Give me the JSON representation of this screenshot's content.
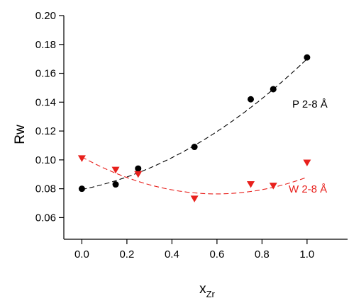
{
  "chart_data": {
    "type": "scatter",
    "xlabel": "x",
    "xlabel_subscript": "Zr",
    "ylabel": "Rw",
    "xlim": [
      -0.08,
      1.18
    ],
    "ylim": [
      0.045,
      0.2
    ],
    "xticks": [
      "0.0",
      "0.2",
      "0.4",
      "0.6",
      "0.8",
      "1.0"
    ],
    "yticks": [
      "0.06",
      "0.08",
      "0.10",
      "0.12",
      "0.14",
      "0.16",
      "0.18",
      "0.20"
    ],
    "grid": false,
    "series": [
      {
        "name": "P 2-8 Å",
        "marker": "circle",
        "color": "#000000",
        "x": [
          0.0,
          0.15,
          0.25,
          0.5,
          0.75,
          0.85,
          1.0
        ],
        "y": [
          0.08,
          0.083,
          0.094,
          0.109,
          0.142,
          0.149,
          0.171
        ],
        "fit": {
          "type": "quadratic",
          "coefficients": [
            0.0795,
            0.0315,
            0.059
          ],
          "style": "dashed"
        }
      },
      {
        "name": "W 2-8 Å",
        "marker": "triangle-down",
        "color": "#e8201c",
        "x": [
          0.0,
          0.15,
          0.25,
          0.5,
          0.75,
          0.85,
          1.0
        ],
        "y": [
          0.101,
          0.093,
          0.09,
          0.073,
          0.083,
          0.082,
          0.098
        ],
        "fit": {
          "type": "quadratic",
          "coefficients": [
            0.102,
            -0.0855,
            0.0715
          ],
          "style": "dashed"
        }
      }
    ]
  }
}
